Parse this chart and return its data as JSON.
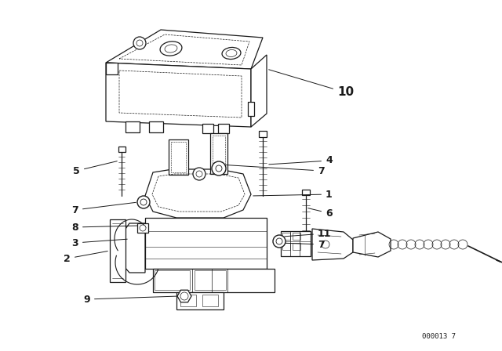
{
  "background_color": "#ffffff",
  "line_color": "#1a1a1a",
  "watermark": "000013 7",
  "fig_width": 6.4,
  "fig_height": 4.48,
  "dpi": 100,
  "label_fs": 9,
  "label_10_fs": 11
}
